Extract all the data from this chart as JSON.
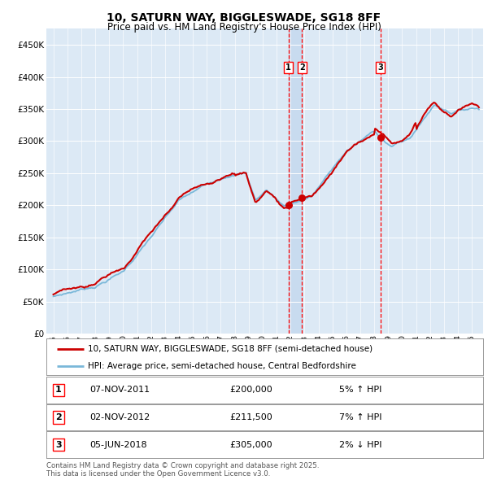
{
  "title": "10, SATURN WAY, BIGGLESWADE, SG18 8FF",
  "subtitle": "Price paid vs. HM Land Registry's House Price Index (HPI)",
  "background_color": "#ffffff",
  "plot_bg_color": "#dce9f5",
  "grid_color": "#ffffff",
  "hpi_color": "#7ab8d9",
  "price_color": "#cc0000",
  "transactions": [
    {
      "num": 1,
      "date": "07-NOV-2011",
      "year": 2011.85,
      "price": 200000,
      "pct": "5%",
      "dir": "↑"
    },
    {
      "num": 2,
      "date": "02-NOV-2012",
      "year": 2012.83,
      "price": 211500,
      "pct": "7%",
      "dir": "↑"
    },
    {
      "num": 3,
      "date": "05-JUN-2018",
      "year": 2018.43,
      "price": 305000,
      "pct": "2%",
      "dir": "↓"
    }
  ],
  "legend_line1": "10, SATURN WAY, BIGGLESWADE, SG18 8FF (semi-detached house)",
  "legend_line2": "HPI: Average price, semi-detached house, Central Bedfordshire",
  "footer": "Contains HM Land Registry data © Crown copyright and database right 2025.\nThis data is licensed under the Open Government Licence v3.0.",
  "ylim": [
    0,
    475000
  ],
  "yticks": [
    0,
    50000,
    100000,
    150000,
    200000,
    250000,
    300000,
    350000,
    400000,
    450000
  ],
  "xlim_start": 1994.5,
  "xlim_end": 2025.8
}
